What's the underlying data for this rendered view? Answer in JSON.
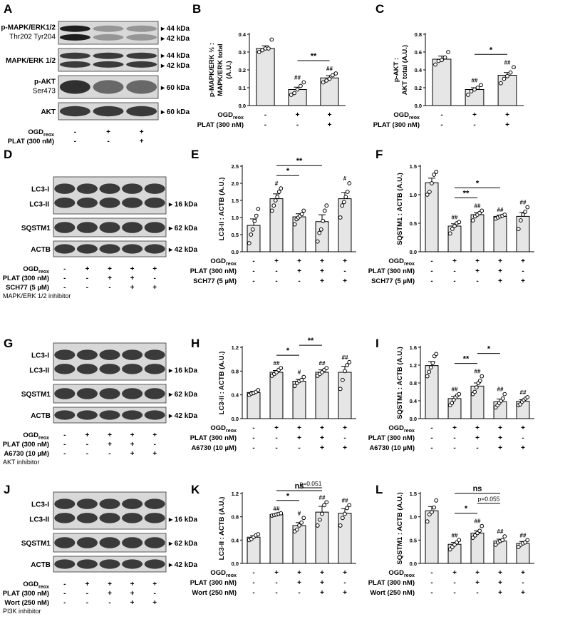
{
  "rows": [
    {
      "blot": {
        "letter": "A",
        "band_labels": [
          [
            "p-MAPK/ERK1/2",
            "Thr202 Tyr204"
          ],
          [
            "MAPK/ERK 1/2"
          ],
          [
            "p-AKT",
            "Ser473"
          ],
          [
            "AKT"
          ]
        ],
        "kda_labels": [
          [
            "44 kDa",
            "42 kDa"
          ],
          [
            "44 kDa",
            "42 kDa"
          ],
          [
            "60 kDa"
          ],
          [
            "60 kDa"
          ]
        ],
        "cond_labels": [
          "OGD_reox",
          "PLAT (300 nM)"
        ],
        "cond_signs": [
          [
            "-",
            "+",
            "+"
          ],
          [
            "-",
            "-",
            "+"
          ]
        ],
        "note": ""
      },
      "charts": [
        {
          "letter": "B",
          "ylabel": [
            "p-MAPK/ERK ½ :",
            "MAPK/ERK total",
            "(A.U.)"
          ]
        },
        {
          "letter": "C",
          "ylabel": [
            "p-AKT :",
            "AKT total (A.U.)"
          ]
        }
      ]
    },
    {
      "blot": {
        "letter": "D",
        "band_labels": [
          [
            "LC3-I",
            "LC3-II"
          ],
          [
            "SQSTM1"
          ],
          [
            "ACTB"
          ]
        ],
        "kda_labels": [
          [
            "16 kDa"
          ],
          [
            "62 kDa"
          ],
          [
            "42 kDa"
          ]
        ],
        "cond_labels": [
          "OGD_reox",
          "PLAT (300 nM)",
          "SCH77 (5 µM)"
        ],
        "cond_signs": [
          [
            "-",
            "+",
            "+",
            "+",
            "+"
          ],
          [
            "-",
            "-",
            "+",
            "+",
            "-"
          ],
          [
            "-",
            "-",
            "-",
            "+",
            "+"
          ]
        ],
        "note": "MAPK/ERK 1/2 inhibitor"
      },
      "charts": [
        {
          "letter": "E",
          "ylabel": [
            "LC3-II : ACTB (A.U.)"
          ]
        },
        {
          "letter": "F",
          "ylabel": [
            "SQSTM1 : ACTB (A.U.)"
          ]
        }
      ]
    },
    {
      "blot": {
        "letter": "G",
        "band_labels": [
          [
            "LC3-I",
            "LC3-II"
          ],
          [
            "SQSTM1"
          ],
          [
            "ACTB"
          ]
        ],
        "kda_labels": [
          [
            "16 kDa"
          ],
          [
            "62 kDa"
          ],
          [
            "42 kDa"
          ]
        ],
        "cond_labels": [
          "OGD_reox",
          "PLAT (300 nM)",
          "A6730 (10 µM)"
        ],
        "cond_signs": [
          [
            "-",
            "+",
            "+",
            "+",
            "+"
          ],
          [
            "-",
            "-",
            "+",
            "+",
            "-"
          ],
          [
            "-",
            "-",
            "-",
            "+",
            "+"
          ]
        ],
        "note": "AKT inhibitor"
      },
      "charts": [
        {
          "letter": "H",
          "ylabel": [
            "LC3-II : ACTB (A.U.)"
          ]
        },
        {
          "letter": "I",
          "ylabel": [
            "SQSTM1 : ACTB (A.U.)"
          ]
        }
      ]
    },
    {
      "blot": {
        "letter": "J",
        "band_labels": [
          [
            "LC3-I",
            "LC3-II"
          ],
          [
            "SQSTM1"
          ],
          [
            "ACTB"
          ]
        ],
        "kda_labels": [
          [
            "16 kDa"
          ],
          [
            "62 kDa"
          ],
          [
            "42 kDa"
          ]
        ],
        "cond_labels": [
          "OGD_reox",
          "PLAT (300 nM)",
          "Wort (250 nM)"
        ],
        "cond_signs": [
          [
            "-",
            "+",
            "+",
            "+",
            "+"
          ],
          [
            "-",
            "-",
            "+",
            "+",
            "-"
          ],
          [
            "-",
            "-",
            "-",
            "+",
            "+"
          ]
        ],
        "note": "PI3K inhibitor"
      },
      "charts": [
        {
          "letter": "K",
          "ylabel": [
            "LC3-II : ACTB (A.U.)"
          ]
        },
        {
          "letter": "L",
          "ylabel": [
            "SQSTM1 : ACTB (A.U.)"
          ]
        }
      ]
    }
  ],
  "chart_data": [
    {
      "panel": "B",
      "type": "bar",
      "categories": [
        "1",
        "2",
        "3"
      ],
      "values": [
        0.32,
        0.09,
        0.155
      ],
      "errors": [
        0.015,
        0.013,
        0.013
      ],
      "points": [
        [
          0.3,
          0.31,
          0.32,
          0.32,
          0.37
        ],
        [
          0.06,
          0.07,
          0.09,
          0.11,
          0.13
        ],
        [
          0.13,
          0.14,
          0.15,
          0.17,
          0.18
        ]
      ],
      "ylim": [
        0,
        0.4
      ],
      "yticks": [
        "0.0",
        "0.1",
        "0.2",
        "0.3",
        "0.4"
      ],
      "ylabel": "p-MAPK/ERK ½ : MAPK/ERK total (A.U.)",
      "marks": [
        "",
        "##",
        "##"
      ],
      "brackets": [
        {
          "from": 2,
          "to": 3,
          "label": "**"
        }
      ],
      "conditions": [
        {
          "label": "OGD_reox",
          "signs": [
            "-",
            "+",
            "+"
          ]
        },
        {
          "label": "PLAT (300 nM)",
          "signs": [
            "-",
            "-",
            "+"
          ]
        }
      ]
    },
    {
      "panel": "C",
      "type": "bar",
      "categories": [
        "1",
        "2",
        "3"
      ],
      "values": [
        0.52,
        0.18,
        0.34
      ],
      "errors": [
        0.035,
        0.02,
        0.03
      ],
      "points": [
        [
          0.46,
          0.5,
          0.51,
          0.54,
          0.6
        ],
        [
          0.12,
          0.16,
          0.18,
          0.2,
          0.23
        ],
        [
          0.25,
          0.3,
          0.33,
          0.37,
          0.43
        ]
      ],
      "ylim": [
        0,
        0.8
      ],
      "yticks": [
        "0.0",
        "0.2",
        "0.4",
        "0.6",
        "0.8"
      ],
      "ylabel": "p-AKT : AKT total (A.U.)",
      "marks": [
        "",
        "##",
        "##"
      ],
      "brackets": [
        {
          "from": 2,
          "to": 3,
          "label": "*"
        }
      ],
      "conditions": [
        {
          "label": "OGD_reox",
          "signs": [
            "-",
            "+",
            "+"
          ]
        },
        {
          "label": "PLAT (300 nM)",
          "signs": [
            "-",
            "-",
            "+"
          ]
        }
      ]
    },
    {
      "panel": "E",
      "type": "bar",
      "categories": [
        "1",
        "2",
        "3",
        "4",
        "5"
      ],
      "values": [
        0.77,
        1.55,
        1.02,
        0.88,
        1.55
      ],
      "errors": [
        0.19,
        0.14,
        0.09,
        0.2,
        0.18
      ],
      "points": [
        [
          0.25,
          0.5,
          0.65,
          0.9,
          1.05,
          1.25
        ],
        [
          1.2,
          1.35,
          1.5,
          1.6,
          1.75,
          1.85
        ],
        [
          0.8,
          0.95,
          1.0,
          1.05,
          1.1,
          1.2
        ],
        [
          0.3,
          0.55,
          0.65,
          0.9,
          1.2,
          1.35
        ],
        [
          1.0,
          1.35,
          1.45,
          1.6,
          1.75,
          2.0
        ]
      ],
      "ylim": [
        0,
        2.5
      ],
      "yticks": [
        "0.0",
        "0.5",
        "1.0",
        "1.5",
        "2.0",
        "2.5"
      ],
      "ylabel": "LC3-II : ACTB (A.U.)",
      "marks": [
        "",
        "#",
        "",
        "",
        "#"
      ],
      "brackets": [
        {
          "from": 2,
          "to": 3,
          "label": "*"
        },
        {
          "from": 2,
          "to": 4,
          "label": "**"
        }
      ],
      "conditions": [
        {
          "label": "OGD_reox",
          "signs": [
            "-",
            "+",
            "+",
            "+",
            "+"
          ]
        },
        {
          "label": "PLAT (300 nM)",
          "signs": [
            "-",
            "-",
            "+",
            "+",
            "-"
          ]
        },
        {
          "label": "SCH77 (5 µM)",
          "signs": [
            "-",
            "-",
            "-",
            "+",
            "+"
          ]
        }
      ]
    },
    {
      "panel": "F",
      "type": "bar",
      "categories": [
        "1",
        "2",
        "3",
        "4",
        "5"
      ],
      "values": [
        1.21,
        0.45,
        0.65,
        0.62,
        0.62
      ],
      "errors": [
        0.08,
        0.04,
        0.035,
        0.02,
        0.07
      ],
      "points": [
        [
          1.0,
          1.05,
          1.2,
          1.35,
          1.4
        ],
        [
          0.32,
          0.4,
          0.45,
          0.5,
          0.52
        ],
        [
          0.55,
          0.62,
          0.65,
          0.68,
          0.72
        ],
        [
          0.58,
          0.6,
          0.62,
          0.63,
          0.65
        ],
        [
          0.4,
          0.55,
          0.65,
          0.7,
          0.78
        ]
      ],
      "ylim": [
        0,
        1.5
      ],
      "yticks": [
        "0.0",
        "0.5",
        "1.0",
        "1.5"
      ],
      "ylabel": "SQSTM1 : ACTB (A.U.)",
      "marks": [
        "",
        "##",
        "##",
        "##",
        "##"
      ],
      "brackets": [
        {
          "from": 2,
          "to": 3,
          "label": "**"
        },
        {
          "from": 2,
          "to": 4,
          "label": "*"
        }
      ],
      "conditions": [
        {
          "label": "OGD_reox",
          "signs": [
            "-",
            "+",
            "+",
            "+",
            "+"
          ]
        },
        {
          "label": "PLAT (300 nM)",
          "signs": [
            "-",
            "-",
            "+",
            "+",
            "-"
          ]
        },
        {
          "label": "SCH77 (5 µM)",
          "signs": [
            "-",
            "-",
            "-",
            "+",
            "+"
          ]
        }
      ]
    },
    {
      "panel": "H",
      "type": "bar",
      "categories": [
        "1",
        "2",
        "3",
        "4",
        "5"
      ],
      "values": [
        0.44,
        0.78,
        0.63,
        0.78,
        0.78
      ],
      "errors": [
        0.02,
        0.03,
        0.03,
        0.04,
        0.1
      ],
      "points": [
        [
          0.4,
          0.42,
          0.43,
          0.45,
          0.48
        ],
        [
          0.72,
          0.75,
          0.78,
          0.82,
          0.85
        ],
        [
          0.55,
          0.6,
          0.63,
          0.65,
          0.7
        ],
        [
          0.72,
          0.75,
          0.78,
          0.82,
          0.85
        ],
        [
          0.5,
          0.65,
          0.8,
          0.9,
          0.95
        ]
      ],
      "ylim": [
        0,
        1.2
      ],
      "yticks": [
        "0.0",
        "0.4",
        "0.8",
        "1.2"
      ],
      "ylabel": "LC3-II : ACTB (A.U.)",
      "marks": [
        "",
        "##",
        "#",
        "##",
        "##"
      ],
      "brackets": [
        {
          "from": 2,
          "to": 3,
          "label": "*"
        },
        {
          "from": 3,
          "to": 4,
          "label": "**"
        }
      ],
      "conditions": [
        {
          "label": "OGD_reox",
          "signs": [
            "-",
            "+",
            "+",
            "+",
            "+"
          ]
        },
        {
          "label": "PLAT (300 nM)",
          "signs": [
            "-",
            "-",
            "+",
            "+",
            "-"
          ]
        },
        {
          "label": "A6730 (10 µM)",
          "signs": [
            "-",
            "-",
            "-",
            "+",
            "+"
          ]
        }
      ]
    },
    {
      "panel": "I",
      "type": "bar",
      "categories": [
        "1",
        "2",
        "3",
        "4",
        "5"
      ],
      "values": [
        1.19,
        0.45,
        0.73,
        0.38,
        0.39
      ],
      "errors": [
        0.09,
        0.05,
        0.07,
        0.06,
        0.035
      ],
      "points": [
        [
          0.95,
          1.05,
          1.15,
          1.25,
          1.4,
          1.45
        ],
        [
          0.3,
          0.35,
          0.42,
          0.48,
          0.52,
          0.55
        ],
        [
          0.55,
          0.6,
          0.7,
          0.8,
          0.85,
          0.95
        ],
        [
          0.25,
          0.3,
          0.35,
          0.4,
          0.45,
          0.55
        ],
        [
          0.3,
          0.32,
          0.38,
          0.42,
          0.45,
          0.48
        ]
      ],
      "ylim": [
        0,
        1.6
      ],
      "yticks": [
        "0.0",
        "0.4",
        "0.8",
        "1.2",
        "1.6"
      ],
      "ylabel": "SQSTM1 : ACTB (A.U.)",
      "marks": [
        "",
        "##",
        "##",
        "##",
        "##"
      ],
      "brackets": [
        {
          "from": 2,
          "to": 3,
          "label": "**"
        },
        {
          "from": 3,
          "to": 4,
          "label": "*"
        }
      ],
      "conditions": [
        {
          "label": "OGD_reox",
          "signs": [
            "-",
            "+",
            "+",
            "+",
            "+"
          ]
        },
        {
          "label": "PLAT (300 nM)",
          "signs": [
            "-",
            "-",
            "+",
            "+",
            "-"
          ]
        },
        {
          "label": "A6730 (10 µM)",
          "signs": [
            "-",
            "-",
            "-",
            "+",
            "+"
          ]
        }
      ]
    },
    {
      "panel": "K",
      "type": "bar",
      "categories": [
        "1",
        "2",
        "3",
        "4",
        "5"
      ],
      "values": [
        0.45,
        0.84,
        0.65,
        0.88,
        0.86
      ],
      "errors": [
        0.025,
        0.012,
        0.05,
        0.1,
        0.08
      ],
      "points": [
        [
          0.4,
          0.42,
          0.45,
          0.48,
          0.5
        ],
        [
          0.82,
          0.83,
          0.84,
          0.85,
          0.86
        ],
        [
          0.55,
          0.58,
          0.65,
          0.7,
          0.78
        ],
        [
          0.65,
          0.75,
          0.85,
          1.0,
          1.05
        ],
        [
          0.65,
          0.78,
          0.85,
          0.95,
          1.0
        ]
      ],
      "ylim": [
        0,
        1.2
      ],
      "yticks": [
        "0.0",
        "0.4",
        "0.8",
        "1.2"
      ],
      "ylabel": "LC3-II : ACTB (A.U.)",
      "marks": [
        "",
        "##",
        "#",
        "##",
        "##"
      ],
      "brackets": [
        {
          "from": 2,
          "to": 3,
          "label": "*"
        },
        {
          "from": 3,
          "to": 4,
          "label": "p=0.051"
        },
        {
          "from": 2,
          "to": 4,
          "label": "ns"
        }
      ],
      "conditions": [
        {
          "label": "OGD_reox",
          "signs": [
            "-",
            "+",
            "+",
            "+",
            "+"
          ]
        },
        {
          "label": "PLAT (300 nM)",
          "signs": [
            "-",
            "-",
            "+",
            "+",
            "-"
          ]
        },
        {
          "label": "Wort (250 nM)",
          "signs": [
            "-",
            "-",
            "-",
            "+",
            "+"
          ]
        }
      ]
    },
    {
      "panel": "L",
      "type": "bar",
      "categories": [
        "1",
        "2",
        "3",
        "4",
        "5"
      ],
      "values": [
        1.13,
        0.41,
        0.65,
        0.48,
        0.43
      ],
      "errors": [
        0.09,
        0.04,
        0.05,
        0.04,
        0.04
      ],
      "points": [
        [
          0.9,
          1.05,
          1.1,
          1.2,
          1.35
        ],
        [
          0.3,
          0.35,
          0.4,
          0.45,
          0.5
        ],
        [
          0.55,
          0.6,
          0.65,
          0.7,
          0.8
        ],
        [
          0.4,
          0.45,
          0.48,
          0.5,
          0.58
        ],
        [
          0.35,
          0.4,
          0.43,
          0.45,
          0.5
        ]
      ],
      "ylim": [
        0,
        1.5
      ],
      "yticks": [
        "0.0",
        "0.5",
        "1.0",
        "1.5"
      ],
      "ylabel": "SQSTM1 : ACTB (A.U.)",
      "marks": [
        "",
        "##",
        "##",
        "##",
        "##"
      ],
      "brackets": [
        {
          "from": 2,
          "to": 3,
          "label": "*"
        },
        {
          "from": 3,
          "to": 4,
          "label": "p=0.055"
        },
        {
          "from": 2,
          "to": 4,
          "label": "ns"
        }
      ],
      "conditions": [
        {
          "label": "OGD_reox",
          "signs": [
            "-",
            "+",
            "+",
            "+",
            "+"
          ]
        },
        {
          "label": "PLAT (300 nM)",
          "signs": [
            "-",
            "-",
            "+",
            "+",
            "-"
          ]
        },
        {
          "label": "Wort (250 nM)",
          "signs": [
            "-",
            "-",
            "-",
            "+",
            "+"
          ]
        }
      ]
    }
  ],
  "colors": {
    "bar_fill": "#e6e6e6",
    "ink": "#000000",
    "blot_background": "#d8d8d8",
    "band": "#1e1e1e",
    "point_fill": "#ffffff"
  }
}
